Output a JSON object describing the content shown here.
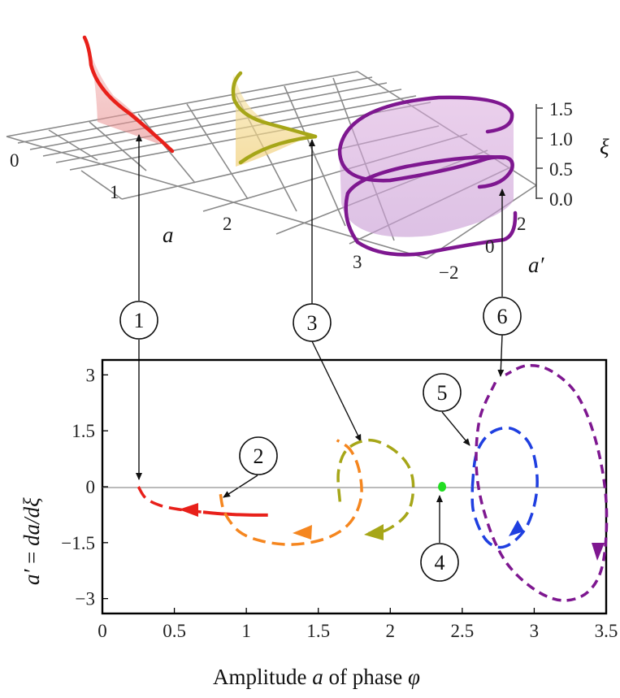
{
  "top_axes": {
    "a_ticks": [
      "0",
      "1",
      "2",
      "3"
    ],
    "a_label": "a",
    "ap_ticks": [
      "−2",
      "0",
      "2"
    ],
    "ap_label": "a′",
    "xi_ticks": [
      "1.5",
      "1.0",
      "0.5",
      "0.0"
    ],
    "xi_label": "ξ"
  },
  "callouts": [
    "1",
    "2",
    "3",
    "4",
    "5",
    "6"
  ],
  "colors": {
    "c1": "#e8201a",
    "c2": "#f5861f",
    "c3": "#a6a618",
    "c4": "#22dd22",
    "c5": "#1f3fe0",
    "c6": "#7e1790",
    "grid": "#8a8a8a",
    "frame": "#000000"
  },
  "chart_data": {
    "type": "line",
    "xlabel": "Amplitude a of phase φ",
    "xlabel_parts": {
      "pre": "Amplitude ",
      "a": "a",
      "mid": " of phase ",
      "phi": "φ"
    },
    "ylabel": "a′ = da/dξ",
    "ylabel_parts": {
      "lhs": "a′",
      "eq": "= ",
      "rhs": "da/dξ"
    },
    "xlim": [
      0,
      3.5
    ],
    "ylim": [
      -3.4,
      3.4
    ],
    "x_ticks": [
      0,
      0.5,
      1,
      1.5,
      2,
      2.5,
      3,
      3.5
    ],
    "x_tick_labels": [
      "0",
      "0.5",
      "1",
      "1.5",
      "2",
      "2.5",
      "3",
      "3.5"
    ],
    "y_ticks": [
      3,
      1.5,
      0,
      -1.5,
      -3
    ],
    "y_tick_labels": [
      "3",
      "1.5",
      "0",
      "−1.5",
      "−3"
    ],
    "grid": false,
    "series": [
      {
        "id": "1",
        "style": "dashed",
        "color": "#e8201a",
        "x": [
          0.25,
          0.3,
          0.4,
          0.55,
          0.7
        ],
        "y": [
          0,
          -0.3,
          -0.5,
          -0.62,
          -0.68
        ]
      },
      {
        "id": "1b",
        "style": "solid",
        "color": "#e8201a",
        "x": [
          0.7,
          0.8,
          0.9,
          0.95,
          1.05,
          1.15
        ],
        "y": [
          -0.68,
          -0.72,
          -0.74,
          -0.75,
          -0.76,
          -0.76
        ]
      },
      {
        "id": "2",
        "style": "dashed",
        "color": "#f5861f",
        "x": [
          0.82,
          0.85,
          0.95,
          1.1,
          1.3,
          1.5,
          1.65,
          1.75,
          1.8,
          1.78,
          1.72,
          1.63
        ],
        "y": [
          -0.2,
          -0.7,
          -1.2,
          -1.45,
          -1.55,
          -1.45,
          -1.2,
          -0.8,
          -0.2,
          0.5,
          1.0,
          1.25
        ]
      },
      {
        "id": "3",
        "style": "dashed",
        "color": "#a6a618",
        "x": [
          1.65,
          1.64,
          1.7,
          1.85,
          2.0,
          2.12,
          2.16,
          2.12,
          1.98,
          1.85
        ],
        "y": [
          -0.4,
          0.4,
          1.0,
          1.25,
          1.05,
          0.6,
          0.0,
          -0.7,
          -1.15,
          -1.25
        ]
      },
      {
        "id": "4",
        "style": "point",
        "color": "#22dd22",
        "x": [
          2.36
        ],
        "y": [
          0
        ]
      },
      {
        "id": "5",
        "style": "dashed",
        "color": "#1f3fe0",
        "x": [
          2.57,
          2.6,
          2.7,
          2.85,
          2.98,
          3.02,
          2.95,
          2.8,
          2.67,
          2.58,
          2.57
        ],
        "y": [
          0.0,
          0.9,
          1.45,
          1.55,
          1.05,
          0.0,
          -1.05,
          -1.6,
          -1.45,
          -0.7,
          0.0
        ]
      },
      {
        "id": "6",
        "style": "dashed",
        "color": "#7e1790",
        "x": [
          2.73,
          2.62,
          2.6,
          2.67,
          2.8,
          3.0,
          3.2,
          3.38,
          3.48,
          3.5,
          3.43,
          3.3,
          3.12,
          2.95,
          2.8
        ],
        "y": [
          2.8,
          1.8,
          0.4,
          -0.9,
          -2.0,
          -2.75,
          -3.05,
          -2.8,
          -2.0,
          -0.4,
          1.2,
          2.45,
          3.1,
          3.25,
          3.0
        ]
      }
    ]
  }
}
